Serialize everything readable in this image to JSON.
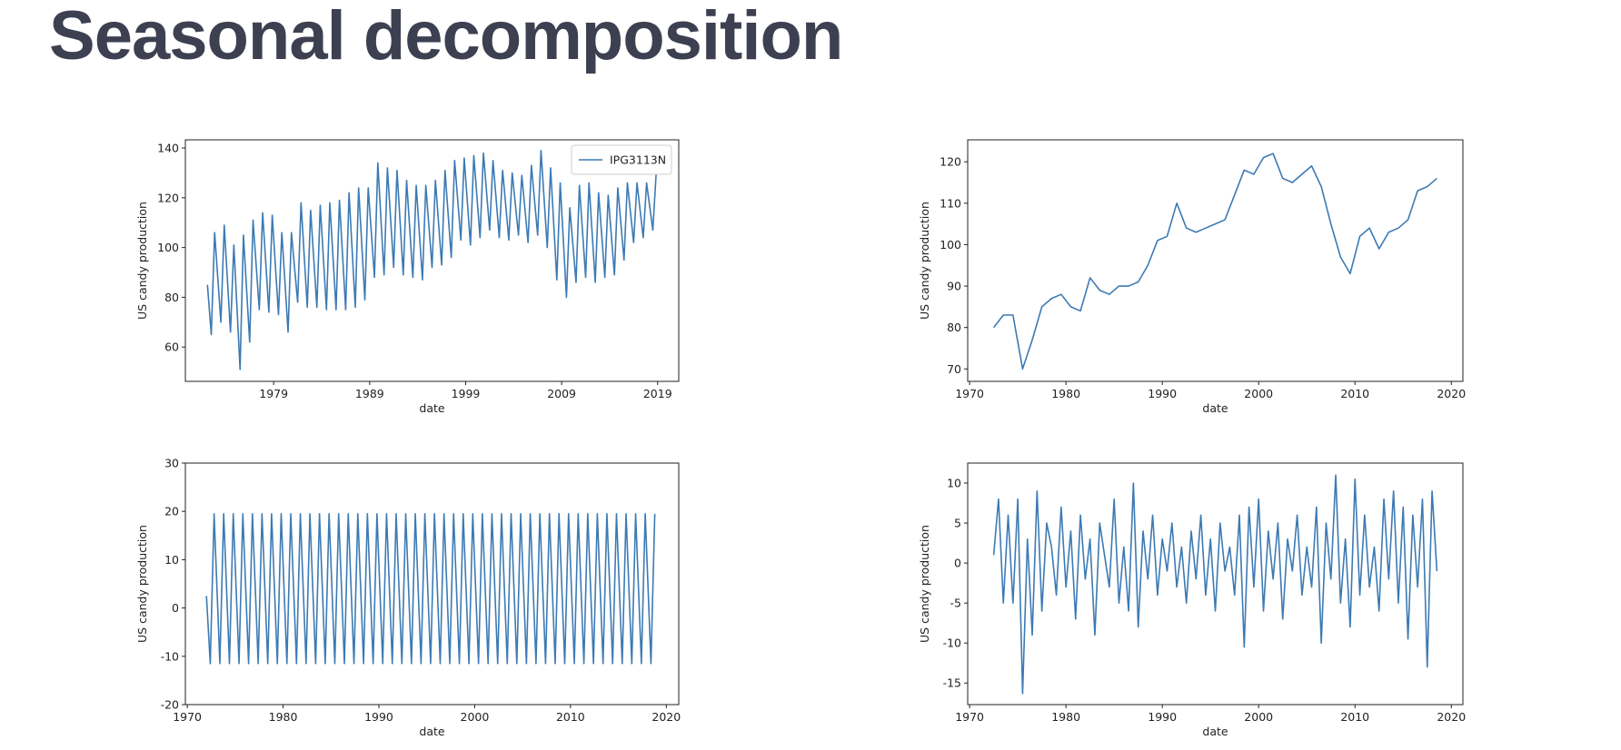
{
  "title": "Seasonal decomposition",
  "chart_data": [
    {
      "type": "line",
      "xlabel": "date",
      "ylabel": "US candy production",
      "x": [
        1972.1,
        1972.5,
        1972.85,
        1973.5,
        1973.85,
        1974.5,
        1974.85,
        1975.5,
        1975.85,
        1976.5,
        1976.85,
        1977.5,
        1977.85,
        1978.5,
        1978.85,
        1979.5,
        1979.85,
        1980.5,
        1980.85,
        1981.5,
        1981.85,
        1982.5,
        1982.85,
        1983.5,
        1983.85,
        1984.5,
        1984.85,
        1985.5,
        1985.85,
        1986.5,
        1986.85,
        1987.5,
        1987.85,
        1988.5,
        1988.85,
        1989.5,
        1989.85,
        1990.5,
        1990.85,
        1991.5,
        1991.85,
        1992.5,
        1992.85,
        1993.5,
        1993.85,
        1994.5,
        1994.85,
        1995.5,
        1995.85,
        1996.5,
        1996.85,
        1997.5,
        1997.85,
        1998.5,
        1998.85,
        1999.5,
        1999.85,
        2000.5,
        2000.85,
        2001.5,
        2001.85,
        2002.5,
        2002.85,
        2003.5,
        2003.85,
        2004.5,
        2004.85,
        2005.5,
        2005.85,
        2006.5,
        2006.85,
        2007.5,
        2007.85,
        2008.5,
        2008.85,
        2009.5,
        2009.85,
        2010.5,
        2010.85,
        2011.5,
        2011.85,
        2012.5,
        2012.85,
        2013.5,
        2013.85,
        2014.5,
        2014.85,
        2015.5,
        2015.85,
        2016.5,
        2016.85,
        2017.5,
        2017.85,
        2018.5,
        2018.85
      ],
      "series": [
        {
          "name": "IPG3113N",
          "color": "#3c7ab4",
          "values": [
            85,
            65,
            106,
            70,
            109,
            66,
            101,
            51,
            105,
            62,
            111,
            75,
            114,
            74,
            113,
            73,
            106,
            66,
            106,
            78,
            118,
            76,
            115,
            76,
            117,
            75,
            118,
            75,
            119,
            75,
            122,
            76,
            124,
            79,
            124,
            88,
            134,
            89,
            132,
            92,
            131,
            89,
            127,
            88,
            125,
            87,
            125,
            92,
            127,
            93,
            131,
            96,
            135,
            103,
            136,
            101,
            137,
            104,
            138,
            107,
            135,
            104,
            131,
            103,
            130,
            105,
            129,
            102,
            133,
            105,
            139,
            100,
            132,
            87,
            126,
            80,
            116,
            86,
            125,
            88,
            126,
            86,
            122,
            88,
            121,
            89,
            124,
            95,
            126,
            102,
            126,
            104,
            126,
            107,
            130
          ]
        }
      ],
      "legend": "upper right",
      "xlim": [
        1969.8,
        2021.2
      ],
      "xticks": [
        1979,
        1989,
        1999,
        2009,
        2019
      ],
      "ylim": [
        46.2,
        143.3
      ],
      "yticks": [
        60,
        80,
        100,
        120,
        140
      ]
    },
    {
      "type": "line",
      "xlabel": "date",
      "ylabel": "US candy production",
      "color": "#3c7ab4",
      "x": [
        1972.5,
        1973.5,
        1974.5,
        1975.5,
        1976.5,
        1977.5,
        1978.5,
        1979.5,
        1980.5,
        1981.5,
        1982.5,
        1983.5,
        1984.5,
        1985.5,
        1986.5,
        1987.5,
        1988.5,
        1989.5,
        1990.5,
        1991.5,
        1992.5,
        1993.5,
        1994.5,
        1995.5,
        1996.5,
        1997.5,
        1998.5,
        1999.5,
        2000.5,
        2001.5,
        2002.5,
        2003.5,
        2004.5,
        2005.5,
        2006.5,
        2007.5,
        2008.5,
        2009.5,
        2010.5,
        2011.5,
        2012.5,
        2013.5,
        2014.5,
        2015.5,
        2016.5,
        2017.5,
        2018.5
      ],
      "values": [
        80,
        83,
        83,
        70,
        77,
        85,
        87,
        88,
        85,
        84,
        92,
        89,
        88,
        90,
        90,
        91,
        95,
        101,
        102,
        110,
        104,
        103,
        104,
        105,
        106,
        112,
        118,
        117,
        121,
        122,
        116,
        115,
        117,
        119,
        114,
        105,
        97,
        93,
        102,
        104,
        99,
        103,
        104,
        106,
        113,
        114,
        116
      ],
      "xlim": [
        1969.8,
        2021.2
      ],
      "xticks": [
        1970,
        1980,
        1990,
        2000,
        2010,
        2020
      ],
      "ylim": [
        67,
        125.3
      ],
      "yticks": [
        70,
        80,
        90,
        100,
        110,
        120
      ]
    },
    {
      "type": "line",
      "xlabel": "date",
      "ylabel": "US candy production",
      "color": "#3c7ab4",
      "x": [
        1972.0,
        1972.4,
        1972.8,
        1973.4,
        1973.8,
        1974.4,
        1974.8,
        1975.4,
        1975.8,
        1976.4,
        1976.8,
        1977.4,
        1977.8,
        1978.4,
        1978.8,
        1979.4,
        1979.8,
        1980.4,
        1980.8,
        1981.4,
        1981.8,
        1982.4,
        1982.8,
        1983.4,
        1983.8,
        1984.4,
        1984.8,
        1985.4,
        1985.8,
        1986.4,
        1986.8,
        1987.4,
        1987.8,
        1988.4,
        1988.8,
        1989.4,
        1989.8,
        1990.4,
        1990.8,
        1991.4,
        1991.8,
        1992.4,
        1992.8,
        1993.4,
        1993.8,
        1994.4,
        1994.8,
        1995.4,
        1995.8,
        1996.4,
        1996.8,
        1997.4,
        1997.8,
        1998.4,
        1998.8,
        1999.4,
        1999.8,
        2000.4,
        2000.8,
        2001.4,
        2001.8,
        2002.4,
        2002.8,
        2003.4,
        2003.8,
        2004.4,
        2004.8,
        2005.4,
        2005.8,
        2006.4,
        2006.8,
        2007.4,
        2007.8,
        2008.4,
        2008.8,
        2009.4,
        2009.8,
        2010.4,
        2010.8,
        2011.4,
        2011.8,
        2012.4,
        2012.8,
        2013.4,
        2013.8,
        2014.4,
        2014.8,
        2015.4,
        2015.8,
        2016.4,
        2016.8,
        2017.4,
        2017.8,
        2018.4,
        2018.8
      ],
      "values": [
        2.5,
        -11.5,
        19.5,
        -11.5,
        19.5,
        -11.5,
        19.5,
        -11.5,
        19.5,
        -11.5,
        19.5,
        -11.5,
        19.5,
        -11.5,
        19.5,
        -11.5,
        19.5,
        -11.5,
        19.5,
        -11.5,
        19.5,
        -11.5,
        19.5,
        -11.5,
        19.5,
        -11.5,
        19.5,
        -11.5,
        19.5,
        -11.5,
        19.5,
        -11.5,
        19.5,
        -11.5,
        19.5,
        -11.5,
        19.5,
        -11.5,
        19.5,
        -11.5,
        19.5,
        -11.5,
        19.5,
        -11.5,
        19.5,
        -11.5,
        19.5,
        -11.5,
        19.5,
        -11.5,
        19.5,
        -11.5,
        19.5,
        -11.5,
        19.5,
        -11.5,
        19.5,
        -11.5,
        19.5,
        -11.5,
        19.5,
        -11.5,
        19.5,
        -11.5,
        19.5,
        -11.5,
        19.5,
        -11.5,
        19.5,
        -11.5,
        19.5,
        -11.5,
        19.5,
        -11.5,
        19.5,
        -11.5,
        19.5,
        -11.5,
        19.5,
        -11.5,
        19.5,
        -11.5,
        19.5,
        -11.5,
        19.5,
        -11.5,
        19.5,
        -11.5,
        19.5,
        -11.5,
        19.5,
        -11.5,
        19.5,
        -11.5,
        19.5
      ],
      "xlim": [
        1969.8,
        2021.3
      ],
      "xticks": [
        1970,
        1980,
        1990,
        2000,
        2010,
        2020
      ],
      "ylim": [
        -20,
        30
      ],
      "yticks": [
        -20,
        -10,
        0,
        10,
        20,
        30
      ]
    },
    {
      "type": "line",
      "xlabel": "date",
      "ylabel": "US candy production",
      "color": "#3c7ab4",
      "x": [
        1972.5,
        1973.0,
        1973.5,
        1974.0,
        1974.5,
        1975.0,
        1975.5,
        1976.0,
        1976.5,
        1977.0,
        1977.5,
        1978.0,
        1978.5,
        1979.0,
        1979.5,
        1980.0,
        1980.5,
        1981.0,
        1981.5,
        1982.0,
        1982.5,
        1983.0,
        1983.5,
        1984.0,
        1984.5,
        1985.0,
        1985.5,
        1986.0,
        1986.5,
        1987.0,
        1987.5,
        1988.0,
        1988.5,
        1989.0,
        1989.5,
        1990.0,
        1990.5,
        1991.0,
        1991.5,
        1992.0,
        1992.5,
        1993.0,
        1993.5,
        1994.0,
        1994.5,
        1995.0,
        1995.5,
        1996.0,
        1996.5,
        1997.0,
        1997.5,
        1998.0,
        1998.5,
        1999.0,
        1999.5,
        2000.0,
        2000.5,
        2001.0,
        2001.5,
        2002.0,
        2002.5,
        2003.0,
        2003.5,
        2004.0,
        2004.5,
        2005.0,
        2005.5,
        2006.0,
        2006.5,
        2007.0,
        2007.5,
        2008.0,
        2008.5,
        2009.0,
        2009.5,
        2010.0,
        2010.5,
        2011.0,
        2011.5,
        2012.0,
        2012.5,
        2013.0,
        2013.5,
        2014.0,
        2014.5,
        2015.0,
        2015.5,
        2016.0,
        2016.5,
        2017.0,
        2017.5,
        2018.0,
        2018.5
      ],
      "values": [
        1,
        8,
        -5,
        6,
        -5,
        8,
        -16.3,
        3,
        -9,
        9,
        -6,
        5,
        2,
        -4,
        7,
        -3,
        4,
        -7,
        6,
        -2,
        3,
        -9,
        5,
        1,
        -3,
        8,
        -5,
        2,
        -6,
        10,
        -8,
        4,
        -2,
        6,
        -4,
        3,
        -1,
        5,
        -3,
        2,
        -5,
        4,
        -2,
        6,
        -4,
        3,
        -6,
        5,
        -1,
        2,
        -4,
        6,
        -10.5,
        7,
        -3,
        8,
        -6,
        4,
        -2,
        5,
        -7,
        3,
        -1,
        6,
        -4,
        2,
        -3,
        7,
        -10,
        5,
        -2,
        11,
        -5,
        3,
        -8,
        10.5,
        -4,
        6,
        -3,
        2,
        -6,
        8,
        -2,
        9,
        -5,
        7,
        -9.5,
        6,
        -3,
        8,
        -13,
        9,
        -1
      ],
      "xlim": [
        1969.8,
        2021.2
      ],
      "xticks": [
        1970,
        1980,
        1990,
        2000,
        2010,
        2020
      ],
      "ylim": [
        -17.7,
        12.5
      ],
      "yticks": [
        -15,
        -10,
        -5,
        0,
        5,
        10
      ]
    }
  ]
}
